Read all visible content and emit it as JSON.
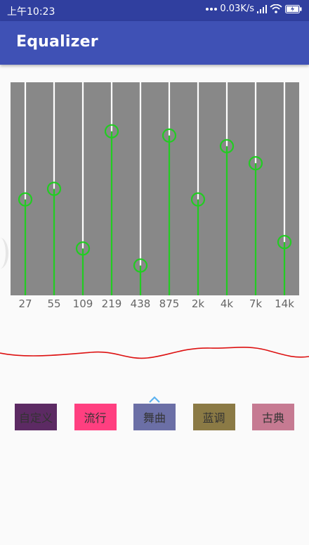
{
  "status_bar": {
    "time": "上午10:23",
    "network_speed": "0.03K/s",
    "icons": [
      "dots-icon",
      "signal-icon",
      "wifi-icon",
      "battery-icon"
    ]
  },
  "app_bar": {
    "title": "Equalizer"
  },
  "equalizer": {
    "bands": [
      {
        "label": "27",
        "level": 0.45
      },
      {
        "label": "55",
        "level": 0.5
      },
      {
        "label": "109",
        "level": 0.22
      },
      {
        "label": "219",
        "level": 0.77
      },
      {
        "label": "438",
        "level": 0.14
      },
      {
        "label": "875",
        "level": 0.75
      },
      {
        "label": "2k",
        "level": 0.45
      },
      {
        "label": "4k",
        "level": 0.7
      },
      {
        "label": "7k",
        "level": 0.62
      },
      {
        "label": "14k",
        "level": 0.25
      }
    ],
    "colors": {
      "panel": "#888888",
      "track": "#ffffff",
      "active": "#22cc22"
    }
  },
  "presets": {
    "items": [
      {
        "label": "自定义",
        "color": "#5c2a63"
      },
      {
        "label": "流行",
        "color": "#ff3f80"
      },
      {
        "label": "舞曲",
        "color": "#6b6fa6"
      },
      {
        "label": "蓝调",
        "color": "#8b7a45"
      },
      {
        "label": "古典",
        "color": "#c67a92"
      }
    ],
    "selected_index": 2
  }
}
